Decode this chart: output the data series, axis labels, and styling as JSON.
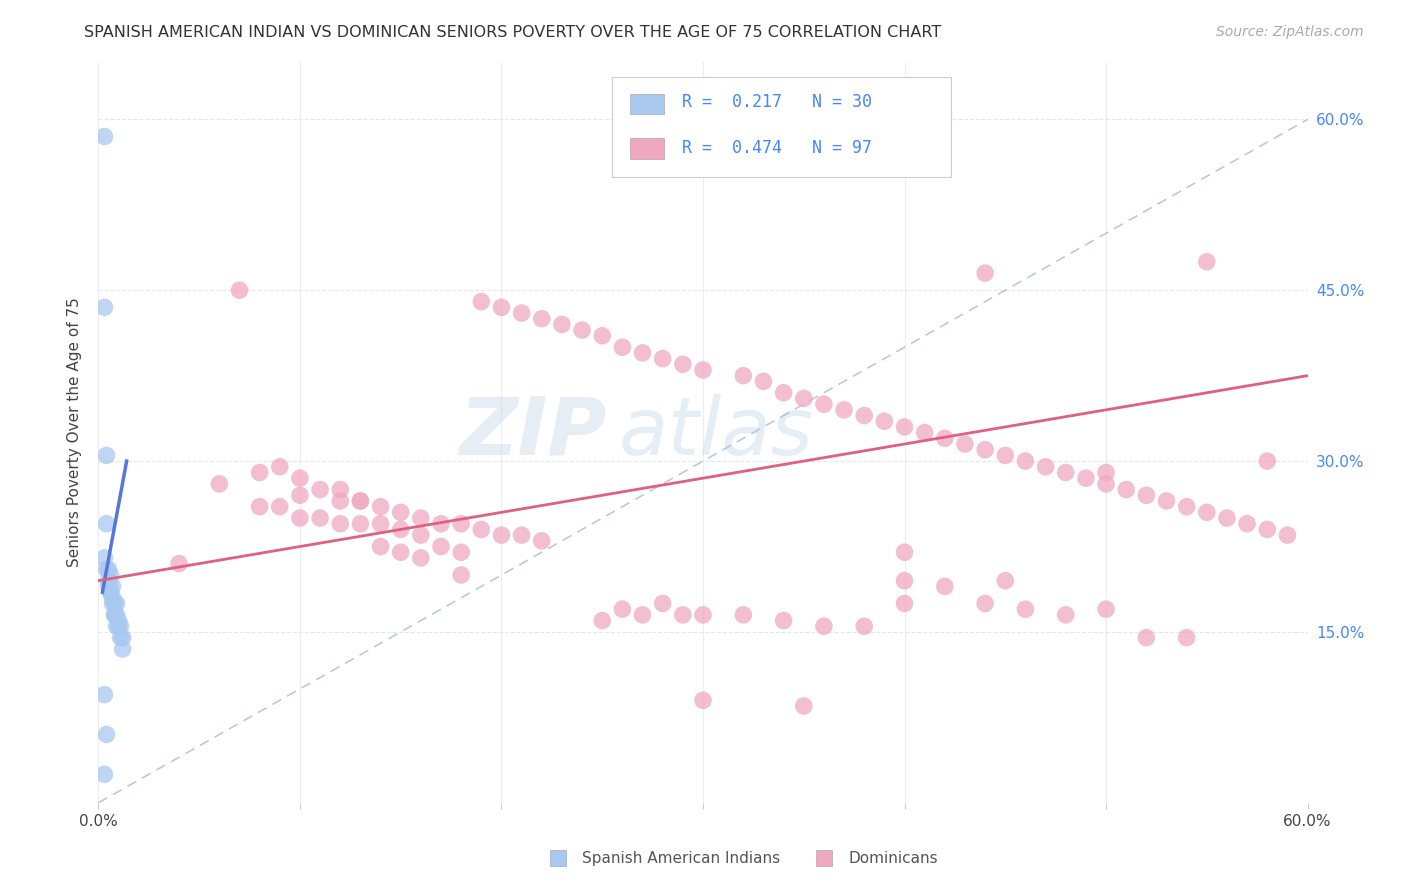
{
  "title": "SPANISH AMERICAN INDIAN VS DOMINICAN SENIORS POVERTY OVER THE AGE OF 75 CORRELATION CHART",
  "source": "Source: ZipAtlas.com",
  "ylabel": "Seniors Poverty Over the Age of 75",
  "right_yticks": [
    "60.0%",
    "45.0%",
    "30.0%",
    "15.0%"
  ],
  "right_ytick_vals": [
    0.6,
    0.45,
    0.3,
    0.15
  ],
  "watermark_zip": "ZIP",
  "watermark_atlas": "atlas",
  "legend_r1": "R =  0.217",
  "legend_n1": "N = 30",
  "legend_r2": "R =  0.474",
  "legend_n2": "N = 97",
  "color_blue": "#a8c8f0",
  "color_pink": "#f0a8c0",
  "color_blue_line": "#5577dd",
  "color_pink_line": "#e06080",
  "color_blue_text": "#4488ff",
  "color_dash": "#aabbdd",
  "xlim": [
    0.0,
    0.6
  ],
  "ylim": [
    0.0,
    0.65
  ],
  "blue_scatter_x": [
    0.003,
    0.003,
    0.004,
    0.004,
    0.005,
    0.005,
    0.006,
    0.006,
    0.007,
    0.007,
    0.008,
    0.008,
    0.009,
    0.009,
    0.01,
    0.01,
    0.011,
    0.011,
    0.012,
    0.012,
    0.003,
    0.004,
    0.005,
    0.006,
    0.007,
    0.008,
    0.009,
    0.003,
    0.004,
    0.003
  ],
  "blue_scatter_y": [
    0.585,
    0.435,
    0.305,
    0.245,
    0.205,
    0.19,
    0.2,
    0.185,
    0.19,
    0.175,
    0.175,
    0.165,
    0.175,
    0.165,
    0.16,
    0.155,
    0.155,
    0.145,
    0.145,
    0.135,
    0.215,
    0.205,
    0.195,
    0.185,
    0.18,
    0.165,
    0.155,
    0.095,
    0.06,
    0.025
  ],
  "pink_scatter_x": [
    0.04,
    0.06,
    0.08,
    0.09,
    0.1,
    0.1,
    0.11,
    0.12,
    0.12,
    0.13,
    0.13,
    0.14,
    0.14,
    0.15,
    0.15,
    0.16,
    0.16,
    0.17,
    0.18,
    0.18,
    0.07,
    0.08,
    0.09,
    0.1,
    0.11,
    0.12,
    0.13,
    0.14,
    0.15,
    0.16,
    0.17,
    0.18,
    0.19,
    0.2,
    0.21,
    0.22,
    0.19,
    0.2,
    0.21,
    0.22,
    0.23,
    0.24,
    0.25,
    0.26,
    0.27,
    0.28,
    0.29,
    0.3,
    0.32,
    0.33,
    0.34,
    0.35,
    0.36,
    0.37,
    0.38,
    0.39,
    0.4,
    0.41,
    0.42,
    0.43,
    0.44,
    0.45,
    0.46,
    0.47,
    0.48,
    0.49,
    0.5,
    0.51,
    0.52,
    0.53,
    0.54,
    0.55,
    0.56,
    0.57,
    0.58,
    0.59,
    0.25,
    0.26,
    0.27,
    0.28,
    0.29,
    0.3,
    0.32,
    0.34,
    0.36,
    0.38,
    0.4,
    0.42,
    0.44,
    0.46,
    0.48,
    0.5,
    0.52,
    0.54,
    0.44,
    0.5,
    0.55,
    0.58,
    0.4,
    0.45,
    0.3,
    0.35,
    0.4
  ],
  "pink_scatter_y": [
    0.21,
    0.28,
    0.26,
    0.26,
    0.25,
    0.27,
    0.25,
    0.265,
    0.245,
    0.265,
    0.245,
    0.245,
    0.225,
    0.24,
    0.22,
    0.235,
    0.215,
    0.225,
    0.22,
    0.2,
    0.45,
    0.29,
    0.295,
    0.285,
    0.275,
    0.275,
    0.265,
    0.26,
    0.255,
    0.25,
    0.245,
    0.245,
    0.24,
    0.235,
    0.235,
    0.23,
    0.44,
    0.435,
    0.43,
    0.425,
    0.42,
    0.415,
    0.41,
    0.4,
    0.395,
    0.39,
    0.385,
    0.38,
    0.375,
    0.37,
    0.36,
    0.355,
    0.35,
    0.345,
    0.34,
    0.335,
    0.33,
    0.325,
    0.32,
    0.315,
    0.31,
    0.305,
    0.3,
    0.295,
    0.29,
    0.285,
    0.28,
    0.275,
    0.27,
    0.265,
    0.26,
    0.255,
    0.25,
    0.245,
    0.24,
    0.235,
    0.16,
    0.17,
    0.165,
    0.175,
    0.165,
    0.165,
    0.165,
    0.16,
    0.155,
    0.155,
    0.195,
    0.19,
    0.175,
    0.17,
    0.165,
    0.17,
    0.145,
    0.145,
    0.465,
    0.29,
    0.475,
    0.3,
    0.22,
    0.195,
    0.09,
    0.085,
    0.175
  ],
  "blue_line_x": [
    0.002,
    0.014
  ],
  "blue_line_y": [
    0.185,
    0.3
  ],
  "dash_line_x": [
    0.0,
    0.6
  ],
  "dash_line_y": [
    0.0,
    0.6
  ],
  "pink_line_x": [
    0.0,
    0.6
  ],
  "pink_line_y": [
    0.195,
    0.375
  ],
  "background_color": "#ffffff",
  "grid_color": "#dddddd"
}
